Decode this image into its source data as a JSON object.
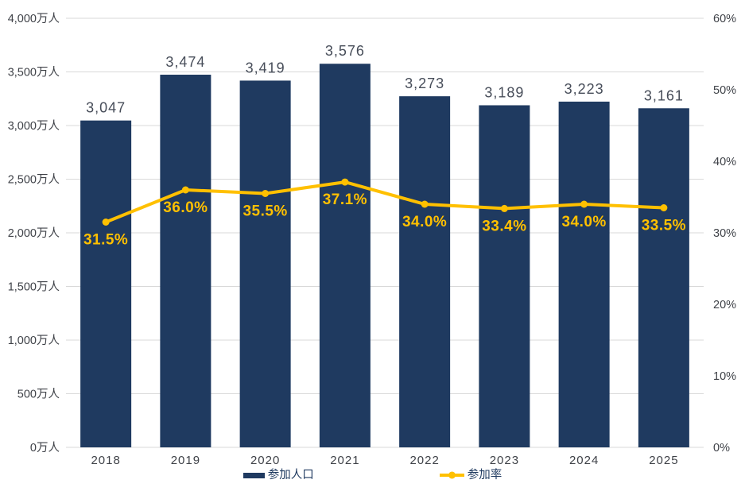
{
  "chart_data": {
    "type": "bar",
    "subtype": "combo-bar-line",
    "categories": [
      "2018",
      "2019",
      "2020",
      "2021",
      "2022",
      "2023",
      "2024",
      "2025"
    ],
    "series": [
      {
        "name": "参加人口",
        "type": "bar",
        "axis": "left",
        "unit": "万人",
        "values": [
          3047,
          3474,
          3419,
          3576,
          3273,
          3189,
          3223,
          3161
        ],
        "labels": [
          "3,047",
          "3,474",
          "3,419",
          "3,576",
          "3,273",
          "3,189",
          "3,223",
          "3,161"
        ],
        "color": "#1f3a60"
      },
      {
        "name": "参加率",
        "type": "line",
        "axis": "right",
        "unit": "%",
        "values": [
          31.5,
          36.0,
          35.5,
          37.1,
          34.0,
          33.4,
          34.0,
          33.5
        ],
        "labels": [
          "31.5%",
          "36.0%",
          "35.5%",
          "37.1%",
          "34.0%",
          "33.4%",
          "34.0%",
          "33.5%"
        ],
        "color": "#ffc000"
      }
    ],
    "left_axis": {
      "min": 0,
      "max": 4000,
      "step": 500,
      "tick_labels": [
        "0万人",
        "500万人",
        "1,000万人",
        "1,500万人",
        "2,000万人",
        "2,500万人",
        "3,000万人",
        "3,500万人",
        "4,000万人"
      ]
    },
    "right_axis": {
      "min": 0,
      "max": 60,
      "step": 10,
      "tick_labels": [
        "0%",
        "10%",
        "20%",
        "30%",
        "40%",
        "50%",
        "60%"
      ]
    },
    "grid": {
      "horizontal": true,
      "vertical": false,
      "color": "#d9d9d9"
    },
    "legend": {
      "position": "bottom",
      "items": [
        "参加人口",
        "参加率"
      ]
    },
    "colors": {
      "bar": "#1f3a60",
      "line": "#ffc000",
      "bar_value_label": "#474d59",
      "rate_label": "#ffc000",
      "axis_text": "#3f4248",
      "gridline": "#d9d9d9",
      "background": "#ffffff"
    }
  }
}
